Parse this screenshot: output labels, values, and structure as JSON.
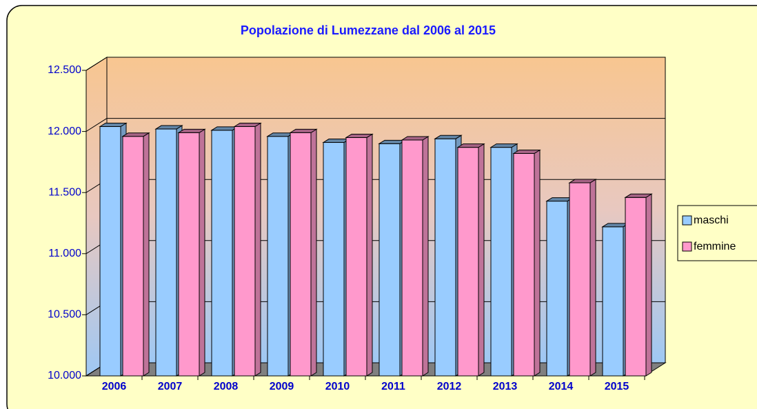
{
  "chart_data": {
    "type": "bar3d",
    "title": "Popolazione di Lumezzane dal 2006 al 2015",
    "categories": [
      "2006",
      "2007",
      "2008",
      "2009",
      "2010",
      "2011",
      "2012",
      "2013",
      "2014",
      "2015"
    ],
    "series": [
      {
        "name": "maschi",
        "color": "#99ccff",
        "values": [
          12040,
          12020,
          12010,
          11960,
          11910,
          11900,
          11940,
          11870,
          11430,
          11220
        ]
      },
      {
        "name": "femmine",
        "color": "#ff99cc",
        "values": [
          11960,
          11990,
          12040,
          11990,
          11950,
          11930,
          11870,
          11820,
          11580,
          11460
        ]
      }
    ],
    "ylim": [
      10000,
      12500
    ],
    "yticks": [
      {
        "value": 10000,
        "label": "10.000"
      },
      {
        "value": 10500,
        "label": "10.500"
      },
      {
        "value": 11000,
        "label": "11.000"
      },
      {
        "value": 11500,
        "label": "11.500"
      },
      {
        "value": 12000,
        "label": "12.000"
      },
      {
        "value": 12500,
        "label": "12.500"
      }
    ],
    "grid": true,
    "legend": "right"
  }
}
